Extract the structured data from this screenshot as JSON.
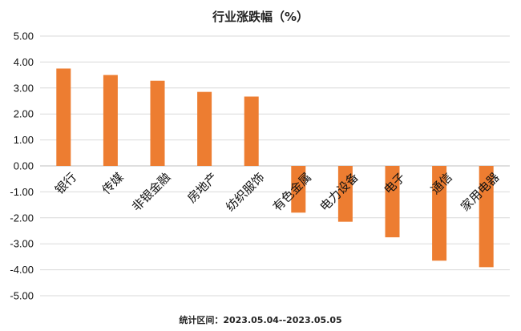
{
  "chart_data": {
    "type": "bar",
    "title": "行业涨跌幅（%）",
    "categories": [
      "银行",
      "传媒",
      "非银金融",
      "房地产",
      "纺织服饰",
      "有色金属",
      "电力设备",
      "电子",
      "通信",
      "家用电器"
    ],
    "values": [
      3.75,
      3.5,
      3.28,
      2.85,
      2.67,
      -1.8,
      -2.15,
      -2.75,
      -3.65,
      -3.9
    ],
    "ylim": [
      -5,
      5
    ],
    "yticks": [
      "-5.00",
      "-4.00",
      "-3.00",
      "-2.00",
      "-1.00",
      "0.00",
      "1.00",
      "2.00",
      "3.00",
      "4.00",
      "5.00"
    ],
    "xlabel": "",
    "ylabel": "",
    "grid": true,
    "bar_color": "#ED7D31",
    "footnote": "统计区间：2023.05.04--2023.05.05"
  }
}
